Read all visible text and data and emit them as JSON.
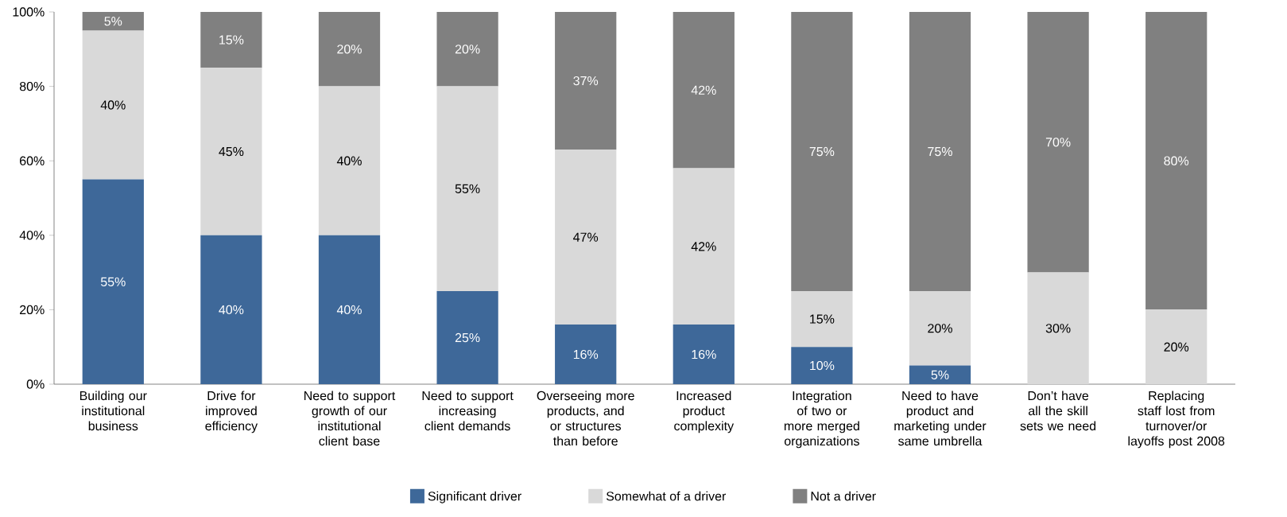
{
  "chart_data": {
    "type": "bar",
    "stacked": true,
    "categories": [
      "Building our institutional business",
      "Drive for improved efficiency",
      "Need to support growth of our institutional client base",
      "Need to support increasing client demands",
      "Overseeing more products, and or structures than before",
      "Increased product complexity",
      "Integration of two or more merged organizations",
      "Need to have product and marketing under same umbrella",
      "Don’t have all the skill sets we need",
      "Replacing staff lost from turnover/or layoffs post 2008"
    ],
    "series": [
      {
        "name": "Significant driver",
        "color": "#3e6899",
        "values": [
          55,
          40,
          40,
          25,
          16,
          16,
          10,
          5,
          0,
          0
        ],
        "value_labels": [
          "55%",
          "40%",
          "40%",
          "25%",
          "16%",
          "16%",
          "10%",
          "5%",
          null,
          null
        ]
      },
      {
        "name": "Somewhat of a driver",
        "color": "#d9d9d9",
        "values": [
          40,
          45,
          40,
          55,
          47,
          42,
          15,
          20,
          30,
          20
        ],
        "value_labels": [
          "40%",
          "45%",
          "40%",
          "55%",
          "47%",
          "42%",
          "15%",
          "20%",
          "30%",
          "20%"
        ]
      },
      {
        "name": "Not a driver",
        "color": "#808080",
        "values": [
          5,
          15,
          20,
          20,
          37,
          42,
          75,
          75,
          70,
          80
        ],
        "value_labels": [
          "5%",
          "15%",
          "20%",
          "20%",
          "37%",
          "42%",
          "75%",
          "75%",
          "70%",
          "80%"
        ]
      }
    ],
    "ylim": [
      0,
      100
    ],
    "yticks": [
      {
        "value": 0,
        "label": "0%"
      },
      {
        "value": 20,
        "label": "20%"
      },
      {
        "value": 40,
        "label": "40%"
      },
      {
        "value": 60,
        "label": "60%"
      },
      {
        "value": 80,
        "label": "80%"
      },
      {
        "value": 100,
        "label": "100%"
      }
    ],
    "grid": false,
    "legend": "bottom"
  }
}
